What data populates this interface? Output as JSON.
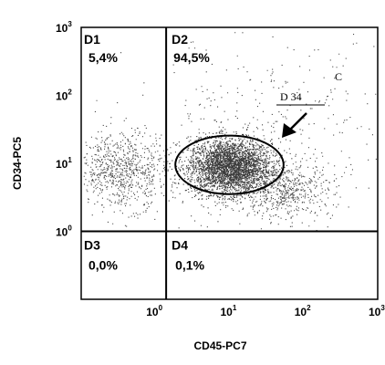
{
  "chart_data": {
    "type": "scatter",
    "xlabel": "CD45-PC7",
    "ylabel": "CD34-PC5",
    "x_scale": "log",
    "y_scale": "log",
    "xlim": [
      0.1,
      1000
    ],
    "ylim": [
      0.1,
      1000
    ],
    "x_ticks": [
      {
        "base": "10",
        "exp": "0",
        "value": 1
      },
      {
        "base": "10",
        "exp": "1",
        "value": 10
      },
      {
        "base": "10",
        "exp": "2",
        "value": 100
      },
      {
        "base": "10",
        "exp": "3",
        "value": 1000
      }
    ],
    "y_ticks": [
      {
        "base": "10",
        "exp": "0",
        "value": 1
      },
      {
        "base": "10",
        "exp": "1",
        "value": 10
      },
      {
        "base": "10",
        "exp": "2",
        "value": 100
      },
      {
        "base": "10",
        "exp": "3",
        "value": 1000
      }
    ],
    "gate_lines": {
      "x": 1.4,
      "y": 1.0
    },
    "quadrants": [
      {
        "name": "D1",
        "percent": "5,4%"
      },
      {
        "name": "D2",
        "percent": "94,5%"
      },
      {
        "name": "D3",
        "percent": "0,0%"
      },
      {
        "name": "D4",
        "percent": "0,1%"
      }
    ],
    "clusters": [
      {
        "center": [
          10,
          9
        ],
        "spread_log": [
          0.28,
          0.2
        ],
        "count": 3200
      },
      {
        "center": [
          0.35,
          8
        ],
        "spread_log": [
          0.3,
          0.28
        ],
        "count": 800
      },
      {
        "center": [
          50,
          4
        ],
        "spread_log": [
          0.35,
          0.2
        ],
        "count": 600
      },
      {
        "center": [
          30,
          30
        ],
        "spread_log": [
          0.9,
          0.7
        ],
        "count": 350
      }
    ],
    "ellipse_gate": {
      "center": [
        10,
        9.5
      ],
      "semi_axes_log": [
        0.73,
        0.43
      ]
    },
    "annotations": {
      "gate_label": "D 34",
      "corner_label": "C",
      "arrow": true
    }
  }
}
